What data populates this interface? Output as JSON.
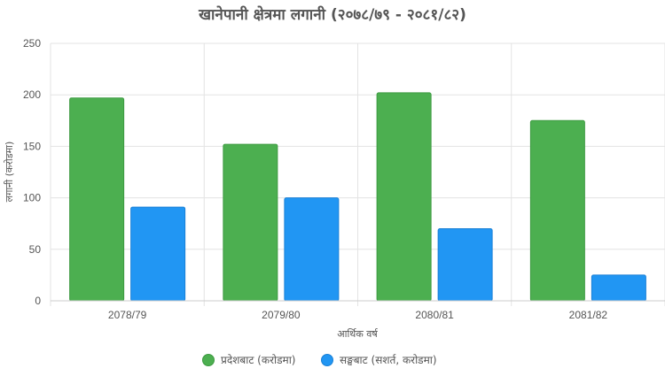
{
  "chart_data": {
    "type": "bar",
    "title": "खानेपानी क्षेत्रमा लगानी (२०७८/७९ - २०८१/८२)",
    "xlabel": "आर्थिक वर्ष",
    "ylabel": "लगानी (करोडमा)",
    "categories": [
      "2078/79",
      "2079/80",
      "2080/81",
      "2081/82"
    ],
    "ylim": [
      0,
      250
    ],
    "yticks": [
      0,
      50,
      100,
      150,
      200,
      250
    ],
    "grid": true,
    "legend_position": "bottom",
    "series": [
      {
        "name": "प्रदेशबाट (करोडमा)",
        "values": [
          197,
          152,
          202,
          175
        ],
        "color": "#4caf50",
        "border": "#3c9a40"
      },
      {
        "name": "सङ्घबाट (सशर्त, करोडमा)",
        "values": [
          91,
          100,
          70,
          25
        ],
        "color": "#2196f3",
        "border": "#1a80d6"
      }
    ]
  }
}
